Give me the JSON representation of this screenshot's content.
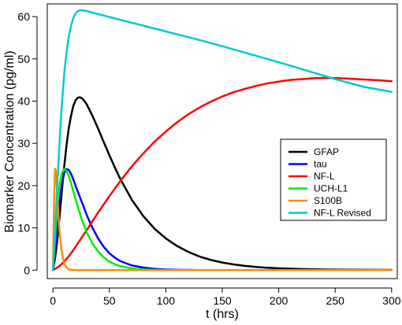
{
  "chart_data": {
    "type": "line",
    "xlabel": "t (hrs)",
    "ylabel": "Biomarker Concentration (pg/ml)",
    "xlim": [
      -5,
      305
    ],
    "ylim": [
      -2,
      63
    ],
    "xticks": [
      0,
      50,
      100,
      150,
      200,
      250,
      300
    ],
    "yticks": [
      0,
      10,
      20,
      30,
      40,
      50,
      60
    ],
    "grid": false,
    "legend_position": "right-center",
    "series": [
      {
        "name": "GFAP",
        "color": "#000000",
        "points": [
          [
            0,
            0
          ],
          [
            2,
            3
          ],
          [
            4,
            7.5
          ],
          [
            6,
            13
          ],
          [
            8,
            19
          ],
          [
            10,
            24.5
          ],
          [
            12,
            29.5
          ],
          [
            14,
            33.5
          ],
          [
            16,
            36.5
          ],
          [
            18,
            38.8
          ],
          [
            20,
            40.2
          ],
          [
            22,
            40.8
          ],
          [
            24,
            40.9
          ],
          [
            26,
            40.6
          ],
          [
            28,
            40
          ],
          [
            30,
            39.2
          ],
          [
            35,
            36.5
          ],
          [
            40,
            33.5
          ],
          [
            45,
            30.3
          ],
          [
            50,
            27.2
          ],
          [
            55,
            24.2
          ],
          [
            60,
            21.4
          ],
          [
            70,
            16.6
          ],
          [
            80,
            12.8
          ],
          [
            90,
            9.8
          ],
          [
            100,
            7.5
          ],
          [
            110,
            5.7
          ],
          [
            120,
            4.3
          ],
          [
            130,
            3.2
          ],
          [
            140,
            2.4
          ],
          [
            150,
            1.8
          ],
          [
            160,
            1.35
          ],
          [
            170,
            1.0
          ],
          [
            180,
            0.75
          ],
          [
            190,
            0.55
          ],
          [
            200,
            0.42
          ],
          [
            220,
            0.25
          ],
          [
            240,
            0.15
          ],
          [
            260,
            0.1
          ],
          [
            280,
            0.07
          ],
          [
            300,
            0.05
          ]
        ]
      },
      {
        "name": "tau",
        "color": "#0000FF",
        "points": [
          [
            0,
            0
          ],
          [
            2,
            5
          ],
          [
            4,
            11
          ],
          [
            6,
            16.5
          ],
          [
            8,
            20.5
          ],
          [
            10,
            23
          ],
          [
            12,
            23.9
          ],
          [
            14,
            23.7
          ],
          [
            16,
            22.8
          ],
          [
            18,
            21.5
          ],
          [
            20,
            20
          ],
          [
            25,
            16.5
          ],
          [
            30,
            13
          ],
          [
            35,
            10
          ],
          [
            40,
            7.5
          ],
          [
            45,
            5.5
          ],
          [
            50,
            4
          ],
          [
            55,
            2.9
          ],
          [
            60,
            2.1
          ],
          [
            70,
            1.1
          ],
          [
            80,
            0.6
          ],
          [
            90,
            0.3
          ],
          [
            100,
            0.15
          ],
          [
            110,
            0.08
          ],
          [
            125,
            0.03
          ]
        ]
      },
      {
        "name": "NF-L",
        "color": "#FF0000",
        "points": [
          [
            0,
            0
          ],
          [
            5,
            0.8
          ],
          [
            10,
            2
          ],
          [
            15,
            3.6
          ],
          [
            20,
            5.5
          ],
          [
            30,
            9.5
          ],
          [
            40,
            13.6
          ],
          [
            50,
            17.5
          ],
          [
            60,
            21.2
          ],
          [
            70,
            24.6
          ],
          [
            80,
            27.6
          ],
          [
            90,
            30.4
          ],
          [
            100,
            32.8
          ],
          [
            110,
            35
          ],
          [
            120,
            36.9
          ],
          [
            130,
            38.5
          ],
          [
            140,
            39.9
          ],
          [
            150,
            41.1
          ],
          [
            160,
            42.1
          ],
          [
            170,
            42.9
          ],
          [
            180,
            43.6
          ],
          [
            190,
            44.2
          ],
          [
            200,
            44.6
          ],
          [
            210,
            45
          ],
          [
            220,
            45.2
          ],
          [
            230,
            45.4
          ],
          [
            240,
            45.5
          ],
          [
            250,
            45.45
          ],
          [
            260,
            45.35
          ],
          [
            270,
            45.2
          ],
          [
            280,
            45.05
          ],
          [
            290,
            44.9
          ],
          [
            300,
            44.7
          ]
        ]
      },
      {
        "name": "UCH-L1",
        "color": "#00EE00",
        "points": [
          [
            0,
            0
          ],
          [
            2,
            8
          ],
          [
            4,
            15.5
          ],
          [
            6,
            20.5
          ],
          [
            8,
            23
          ],
          [
            10,
            23.9
          ],
          [
            12,
            23.5
          ],
          [
            14,
            22.3
          ],
          [
            16,
            20.6
          ],
          [
            18,
            18.7
          ],
          [
            20,
            16.8
          ],
          [
            25,
            12.4
          ],
          [
            30,
            8.9
          ],
          [
            35,
            6.3
          ],
          [
            40,
            4.4
          ],
          [
            45,
            3
          ],
          [
            50,
            2
          ],
          [
            55,
            1.35
          ],
          [
            60,
            0.9
          ],
          [
            70,
            0.4
          ],
          [
            80,
            0.17
          ],
          [
            90,
            0.07
          ],
          [
            100,
            0.03
          ]
        ]
      },
      {
        "name": "S100B",
        "color": "#FF8C00",
        "points": [
          [
            0,
            0
          ],
          [
            0.5,
            8
          ],
          [
            1,
            16
          ],
          [
            1.5,
            21.5
          ],
          [
            2,
            24
          ],
          [
            2.5,
            23.5
          ],
          [
            3,
            21.5
          ],
          [
            4,
            17
          ],
          [
            5,
            12.5
          ],
          [
            6,
            8.8
          ],
          [
            7,
            6
          ],
          [
            8,
            4
          ],
          [
            9,
            2.6
          ],
          [
            10,
            1.6
          ],
          [
            12,
            0.6
          ],
          [
            14,
            0.2
          ],
          [
            16,
            0.07
          ],
          [
            20,
            0
          ],
          [
            300,
            0
          ]
        ]
      },
      {
        "name": "NF-L Revised",
        "color": "#00CCCC",
        "points": [
          [
            0,
            0
          ],
          [
            2,
            10
          ],
          [
            4,
            21
          ],
          [
            6,
            31
          ],
          [
            8,
            39.5
          ],
          [
            10,
            46.5
          ],
          [
            12,
            51.5
          ],
          [
            14,
            55.2
          ],
          [
            16,
            57.8
          ],
          [
            18,
            59.6
          ],
          [
            20,
            60.7
          ],
          [
            22,
            61.3
          ],
          [
            24,
            61.5
          ],
          [
            26,
            61.5
          ],
          [
            28,
            61.4
          ],
          [
            30,
            61.3
          ],
          [
            40,
            60.6
          ],
          [
            50,
            59.9
          ],
          [
            75,
            58.2
          ],
          [
            100,
            56.5
          ],
          [
            125,
            54.8
          ],
          [
            150,
            53
          ],
          [
            175,
            51.1
          ],
          [
            200,
            49.2
          ],
          [
            225,
            47.2
          ],
          [
            250,
            45.2
          ],
          [
            275,
            43.4
          ],
          [
            300,
            42.2
          ]
        ]
      }
    ]
  }
}
